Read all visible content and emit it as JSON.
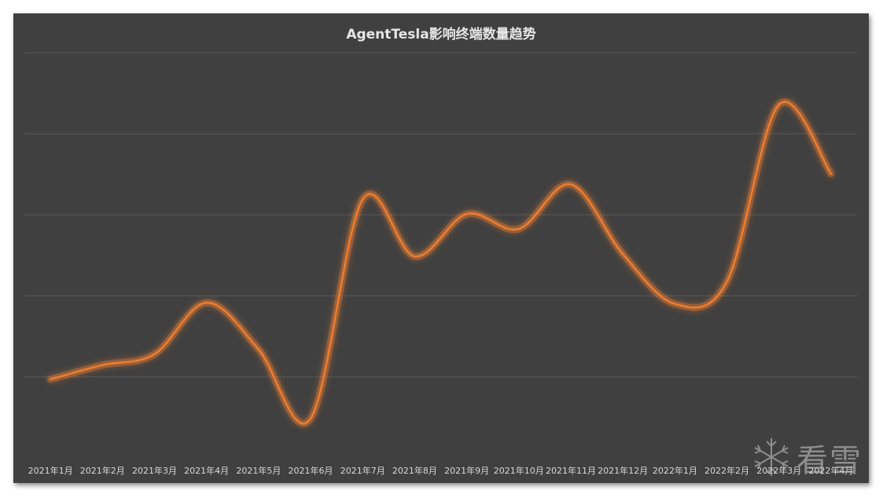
{
  "chart_data": {
    "type": "line",
    "title": "AgentTesla影响终端数量趋势",
    "categories": [
      "2021年1月",
      "2021年2月",
      "2021年3月",
      "2021年4月",
      "2021年5月",
      "2021年6月",
      "2021年7月",
      "2021年8月",
      "2021年9月",
      "2021年10月",
      "2021年11月",
      "2021年12月",
      "2022年1月",
      "2022年2月",
      "2022年3月",
      "2022年4月"
    ],
    "series": [
      {
        "values": [
          1.94,
          2.29,
          2.56,
          3.83,
          2.68,
          0.97,
          6.38,
          4.97,
          6.02,
          5.65,
          6.75,
          5.03,
          3.8,
          4.35,
          8.72,
          7.01
        ]
      }
    ],
    "ylim": [
      0,
      10
    ],
    "grid": true,
    "smooth": true,
    "y_axis_labels_shown": false,
    "line_color": "#ed7d31",
    "background_color": "#404040"
  },
  "watermark": {
    "text": "看雪",
    "icon": "snowflake-icon"
  }
}
